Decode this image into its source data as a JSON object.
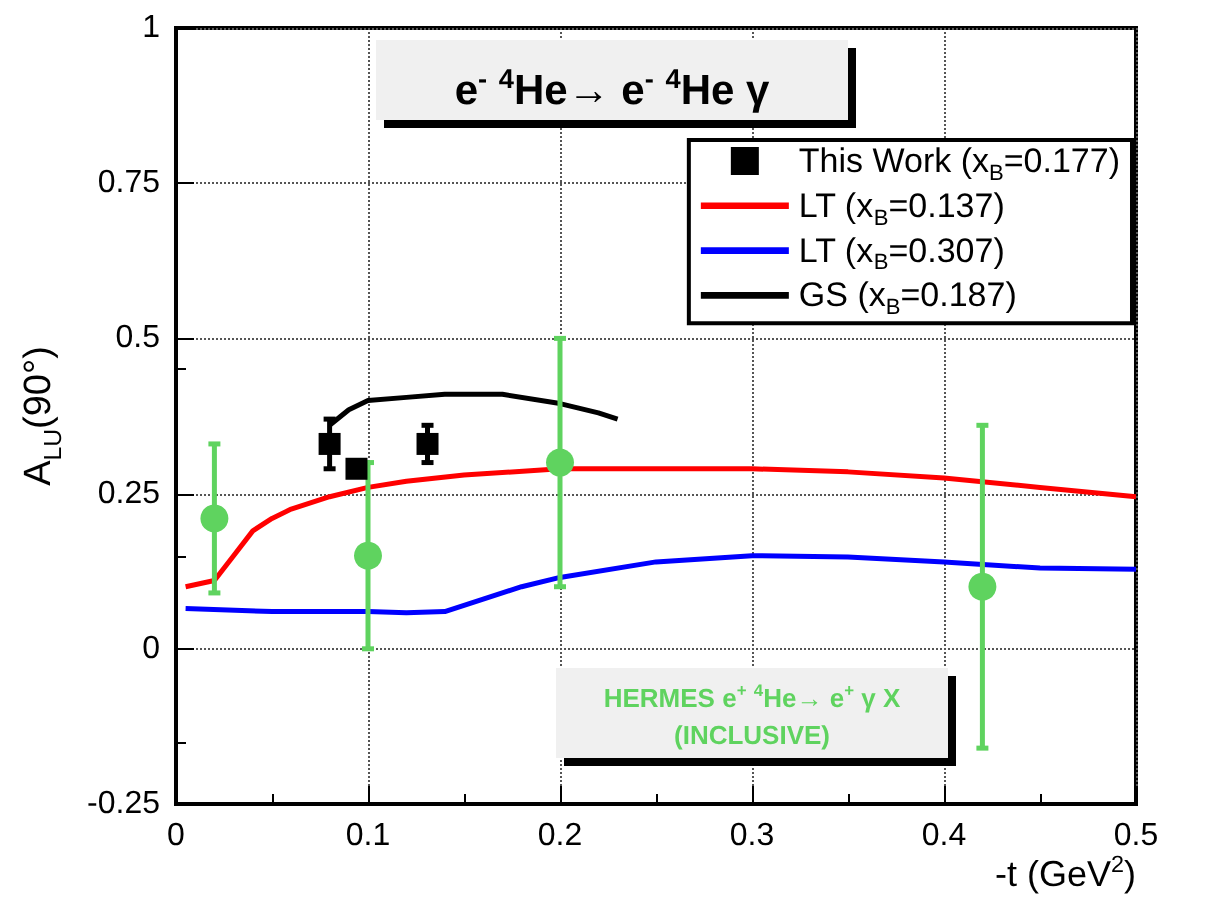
{
  "chart_data": {
    "type": "line",
    "title": "e$^{-}$ $^{4}$He→ e$^{-}$ $^{4}$He γ",
    "xlabel": "-t (GeV$^{2}$)",
    "ylabel": "A$_{LU}$(90°)",
    "annotations": [
      "HERMES e$^{+}$ $^{4}$He→ e$^{+}$ γ X",
      "(INCLUSIVE)"
    ],
    "xlim": [
      0,
      0.5
    ],
    "xticks": [
      0,
      0.1,
      0.2,
      0.3,
      0.4,
      0.5
    ],
    "ylim": [
      -0.25,
      1
    ],
    "yticks": [
      -0.25,
      0,
      0.25,
      0.5,
      0.75,
      1
    ],
    "grid": true,
    "legend": "top right",
    "series": [
      {
        "name": "This Work (x$_{B}$=0.177)",
        "type": "scatter",
        "marker": "square",
        "color": "#000000",
        "x": [
          0.08,
          0.094,
          0.131
        ],
        "values": [
          0.33,
          0.29,
          0.33
        ],
        "errors": [
          0.04,
          null,
          0.03
        ]
      },
      {
        "name": "LT (x$_{B}$=0.137)",
        "marker": "none",
        "color": "#ff0000",
        "x": [
          0.005,
          0.02,
          0.03,
          0.04,
          0.05,
          0.06,
          0.08,
          0.1,
          0.12,
          0.15,
          0.2,
          0.25,
          0.3,
          0.35,
          0.4,
          0.45,
          0.5
        ],
        "values": [
          0.1,
          0.11,
          0.15,
          0.19,
          0.21,
          0.225,
          0.245,
          0.26,
          0.27,
          0.28,
          0.29,
          0.29,
          0.29,
          0.285,
          0.275,
          0.26,
          0.245
        ]
      },
      {
        "name": "LT (x$_{B}$=0.307)",
        "marker": "none",
        "color": "#0000ff",
        "x": [
          0.005,
          0.05,
          0.1,
          0.12,
          0.14,
          0.16,
          0.18,
          0.2,
          0.25,
          0.3,
          0.35,
          0.4,
          0.45,
          0.5
        ],
        "values": [
          0.065,
          0.06,
          0.06,
          0.058,
          0.06,
          0.08,
          0.1,
          0.115,
          0.14,
          0.15,
          0.148,
          0.14,
          0.13,
          0.128
        ]
      },
      {
        "name": "GS (x$_{B}$=0.187)",
        "marker": "none",
        "color": "#000000",
        "x": [
          0.08,
          0.09,
          0.1,
          0.12,
          0.14,
          0.17,
          0.2,
          0.22,
          0.23
        ],
        "values": [
          0.36,
          0.385,
          0.4,
          0.405,
          0.41,
          0.41,
          0.395,
          0.38,
          0.37
        ]
      },
      {
        "type": "scatter",
        "marker": "circle",
        "color": "#5fd35f",
        "x": [
          0.02,
          0.1,
          0.2,
          0.42
        ],
        "values": [
          0.21,
          0.15,
          0.3,
          0.1
        ],
        "errors": [
          [
            0.09,
            0.33
          ],
          [
            0,
            0.3
          ],
          [
            0.1,
            0.5
          ],
          [
            -0.16,
            0.36
          ]
        ]
      }
    ]
  }
}
